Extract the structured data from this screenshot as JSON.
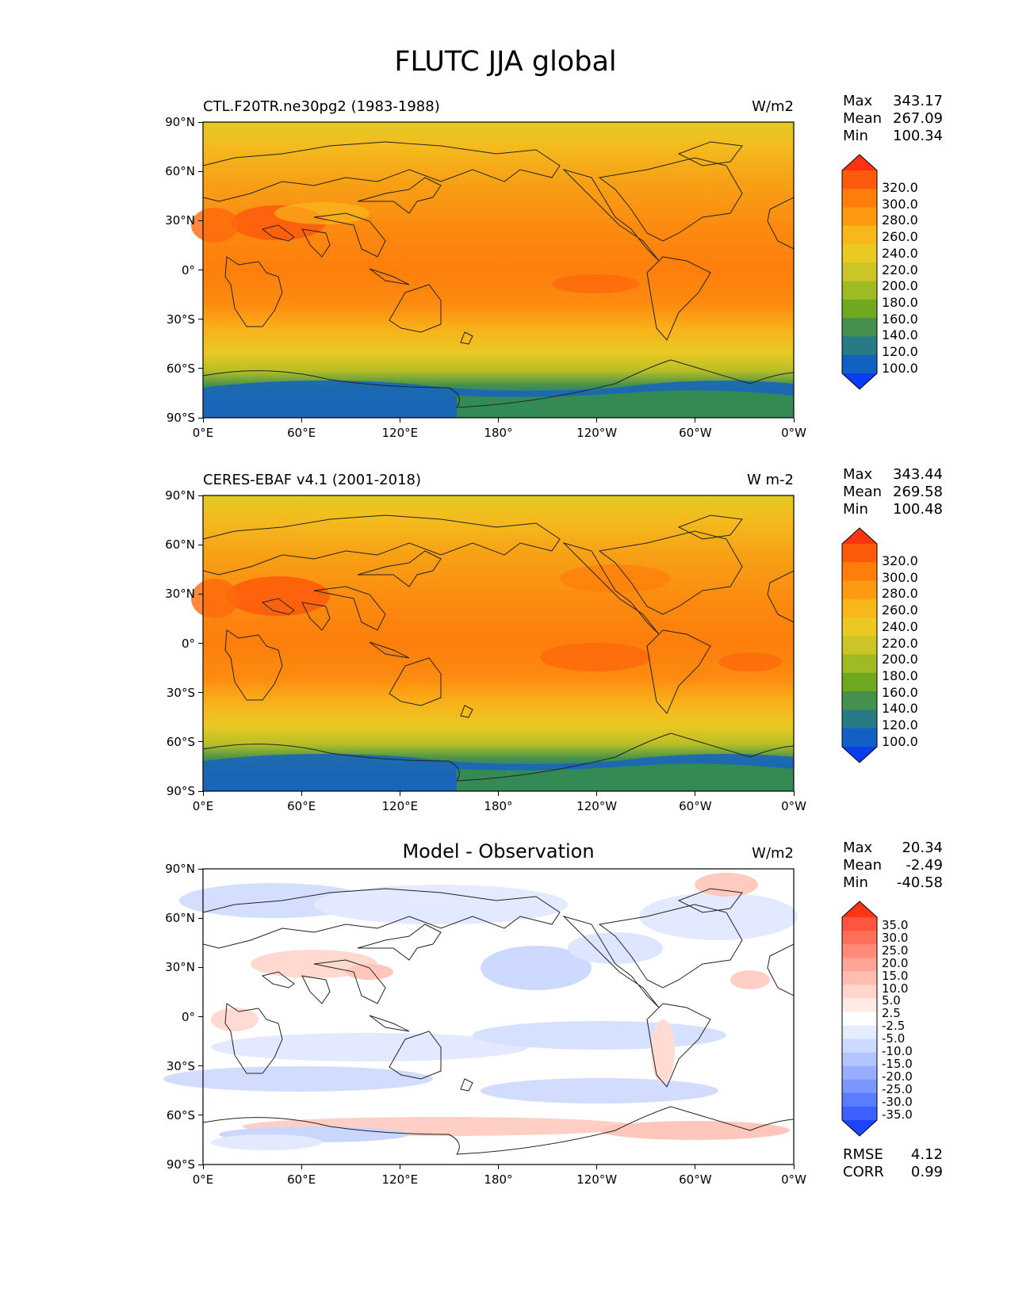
{
  "title": "FLUTC JJA global",
  "panels": [
    {
      "id": "model",
      "title": "CTL.F20TR.ne30pg2 (1983-1988)",
      "units": "W/m2",
      "stats": [
        {
          "label": "Max",
          "value": "343.17"
        },
        {
          "label": "Mean",
          "value": "267.09"
        },
        {
          "label": "Min",
          "value": "100.34"
        }
      ],
      "colorbar": {
        "levels": [
          "320.0",
          "300.0",
          "280.0",
          "260.0",
          "240.0",
          "220.0",
          "200.0",
          "180.0",
          "160.0",
          "140.0",
          "120.0",
          "100.0"
        ],
        "colors": [
          "#ff3311",
          "#fe5a0c",
          "#fe7d0b",
          "#fd9a12",
          "#f8b81b",
          "#ebc923",
          "#cbc527",
          "#9fba22",
          "#6ea920",
          "#44904c",
          "#287a87",
          "#1161c4",
          "#0a3cf5"
        ]
      }
    },
    {
      "id": "obs",
      "title": "CERES-EBAF v4.1 (2001-2018)",
      "units": "W m-2",
      "stats": [
        {
          "label": "Max",
          "value": "343.44"
        },
        {
          "label": "Mean",
          "value": "269.58"
        },
        {
          "label": "Min",
          "value": "100.48"
        }
      ],
      "colorbar": {
        "levels": [
          "320.0",
          "300.0",
          "280.0",
          "260.0",
          "240.0",
          "220.0",
          "200.0",
          "180.0",
          "160.0",
          "140.0",
          "120.0",
          "100.0"
        ],
        "colors": [
          "#ff3311",
          "#fe5a0c",
          "#fe7d0b",
          "#fd9a12",
          "#f8b81b",
          "#ebc923",
          "#cbc527",
          "#9fba22",
          "#6ea920",
          "#44904c",
          "#287a87",
          "#1161c4",
          "#0a3cf5"
        ]
      }
    },
    {
      "id": "diff",
      "title": "Model - Observation",
      "units": "W/m2",
      "stats": [
        {
          "label": "Max",
          "value": "20.34"
        },
        {
          "label": "Mean",
          "value": "-2.49"
        },
        {
          "label": "Min",
          "value": "-40.58"
        }
      ],
      "extra_stats": [
        {
          "label": "RMSE",
          "value": "4.12"
        },
        {
          "label": "CORR",
          "value": "0.99"
        }
      ],
      "colorbar": {
        "levels": [
          "35.0",
          "30.0",
          "25.0",
          "20.0",
          "15.0",
          "10.0",
          "5.0",
          "2.5",
          "-2.5",
          "-5.0",
          "-10.0",
          "-15.0",
          "-20.0",
          "-25.0",
          "-30.0",
          "-35.0"
        ],
        "colors": [
          "#ff3315",
          "#ff5540",
          "#ff6e5a",
          "#ff8a78",
          "#ffa596",
          "#ffbdb0",
          "#ffd5cc",
          "#ffebe6",
          "#ffffff",
          "#e6ecff",
          "#cdd9ff",
          "#b3c5ff",
          "#97aeff",
          "#7b97ff",
          "#5c7cff",
          "#3d61ff",
          "#1f44ff"
        ]
      }
    }
  ],
  "axes": {
    "x_ticks": [
      "0°E",
      "60°E",
      "120°E",
      "180°",
      "120°W",
      "60°W",
      "0°W"
    ],
    "y_ticks": [
      "90°N",
      "60°N",
      "30°N",
      "0°",
      "30°S",
      "60°S",
      "90°S"
    ]
  }
}
